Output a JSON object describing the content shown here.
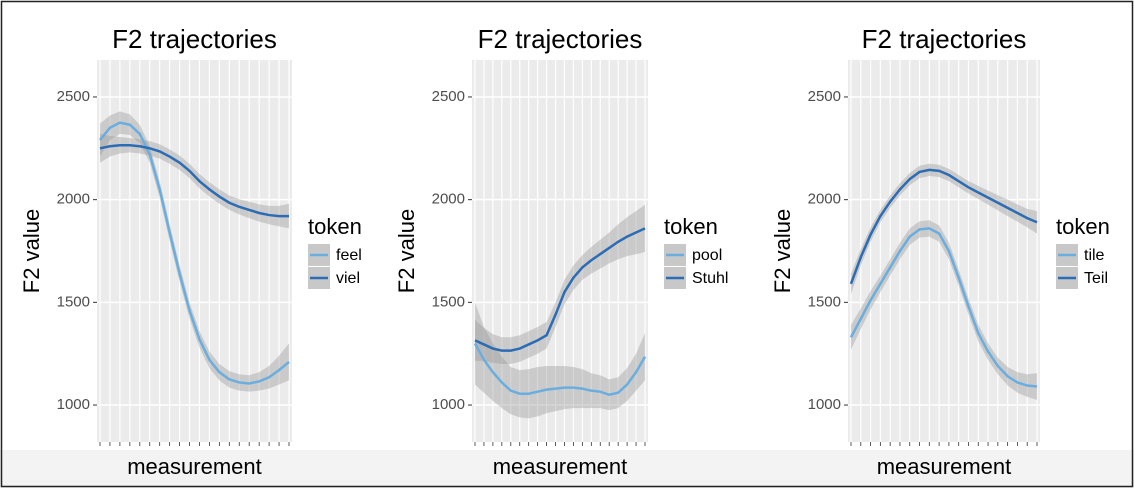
{
  "chart_data": [
    {
      "type": "line",
      "title": "F2 trajectories",
      "x_label": "measurement",
      "y_label": "F2 value",
      "legend_title": "token",
      "ylim": [
        820,
        2680
      ],
      "yticks": [
        1000,
        1500,
        2000,
        2500
      ],
      "grid": true,
      "series": [
        {
          "name": "feel",
          "color": "#6aaee0",
          "values": [
            2290,
            2350,
            2375,
            2365,
            2320,
            2220,
            2050,
            1840,
            1640,
            1460,
            1320,
            1220,
            1160,
            1125,
            1110,
            1105,
            1115,
            1135,
            1170,
            1210
          ],
          "lower": [
            2210,
            2290,
            2320,
            2315,
            2275,
            2180,
            2010,
            1800,
            1600,
            1420,
            1280,
            1180,
            1120,
            1085,
            1070,
            1065,
            1070,
            1080,
            1100,
            1120
          ],
          "upper": [
            2370,
            2410,
            2430,
            2415,
            2365,
            2260,
            2090,
            1880,
            1680,
            1500,
            1360,
            1260,
            1200,
            1165,
            1150,
            1145,
            1160,
            1190,
            1240,
            1300
          ]
        },
        {
          "name": "viel",
          "color": "#2b6cb5",
          "values": [
            2250,
            2260,
            2265,
            2265,
            2260,
            2250,
            2235,
            2210,
            2180,
            2140,
            2090,
            2050,
            2015,
            1985,
            1965,
            1950,
            1935,
            1925,
            1920,
            1920
          ],
          "lower": [
            2180,
            2210,
            2225,
            2230,
            2225,
            2215,
            2200,
            2175,
            2145,
            2105,
            2055,
            2015,
            1980,
            1950,
            1928,
            1910,
            1893,
            1880,
            1870,
            1860
          ],
          "upper": [
            2320,
            2310,
            2305,
            2300,
            2295,
            2285,
            2270,
            2245,
            2215,
            2175,
            2125,
            2085,
            2050,
            2020,
            2002,
            1990,
            1977,
            1970,
            1970,
            1980
          ]
        }
      ]
    },
    {
      "type": "line",
      "title": "F2 trajectories",
      "x_label": "measurement",
      "y_label": "F2 value",
      "legend_title": "token",
      "ylim": [
        820,
        2680
      ],
      "yticks": [
        1000,
        1500,
        2000,
        2500
      ],
      "grid": true,
      "series": [
        {
          "name": "pool",
          "color": "#6aaee0",
          "values": [
            1300,
            1220,
            1160,
            1110,
            1070,
            1055,
            1055,
            1065,
            1075,
            1080,
            1085,
            1085,
            1080,
            1070,
            1065,
            1050,
            1060,
            1100,
            1160,
            1235
          ],
          "lower": [
            1100,
            1060,
            1020,
            985,
            955,
            940,
            935,
            945,
            960,
            970,
            980,
            985,
            985,
            985,
            985,
            975,
            985,
            1020,
            1070,
            1120
          ],
          "upper": [
            1500,
            1380,
            1300,
            1235,
            1185,
            1170,
            1175,
            1185,
            1190,
            1190,
            1190,
            1185,
            1175,
            1155,
            1145,
            1125,
            1135,
            1180,
            1250,
            1350
          ]
        },
        {
          "name": "Stuhl",
          "color": "#2b6cb5",
          "values": [
            1315,
            1295,
            1275,
            1265,
            1265,
            1275,
            1295,
            1315,
            1340,
            1440,
            1550,
            1620,
            1670,
            1705,
            1735,
            1765,
            1795,
            1820,
            1840,
            1860
          ],
          "lower": [
            1215,
            1215,
            1205,
            1200,
            1200,
            1210,
            1230,
            1250,
            1275,
            1380,
            1490,
            1560,
            1610,
            1640,
            1665,
            1690,
            1710,
            1725,
            1735,
            1745
          ],
          "upper": [
            1415,
            1375,
            1345,
            1330,
            1330,
            1340,
            1360,
            1380,
            1405,
            1500,
            1610,
            1680,
            1730,
            1770,
            1805,
            1840,
            1880,
            1915,
            1945,
            1975
          ]
        }
      ]
    },
    {
      "type": "line",
      "title": "F2 trajectories",
      "x_label": "measurement",
      "y_label": "F2 value",
      "legend_title": "token",
      "ylim": [
        820,
        2680
      ],
      "yticks": [
        1000,
        1500,
        2000,
        2500
      ],
      "grid": true,
      "series": [
        {
          "name": "tile",
          "color": "#6aaee0",
          "values": [
            1330,
            1420,
            1510,
            1590,
            1670,
            1750,
            1820,
            1855,
            1860,
            1835,
            1750,
            1620,
            1480,
            1350,
            1260,
            1190,
            1140,
            1110,
            1095,
            1090
          ],
          "lower": [
            1270,
            1370,
            1465,
            1550,
            1630,
            1710,
            1780,
            1815,
            1820,
            1795,
            1710,
            1580,
            1440,
            1310,
            1220,
            1150,
            1095,
            1060,
            1040,
            1025
          ],
          "upper": [
            1390,
            1470,
            1555,
            1630,
            1710,
            1790,
            1860,
            1895,
            1900,
            1875,
            1790,
            1660,
            1520,
            1390,
            1300,
            1230,
            1185,
            1160,
            1150,
            1155
          ]
        },
        {
          "name": "Teil",
          "color": "#2b6cb5",
          "values": [
            1590,
            1720,
            1830,
            1920,
            1990,
            2050,
            2100,
            2135,
            2145,
            2140,
            2120,
            2090,
            2060,
            2035,
            2010,
            1985,
            1960,
            1935,
            1910,
            1890
          ],
          "lower": [
            1540,
            1680,
            1795,
            1890,
            1960,
            2020,
            2070,
            2105,
            2115,
            2110,
            2090,
            2060,
            2030,
            2003,
            1976,
            1948,
            1920,
            1893,
            1865,
            1835
          ],
          "upper": [
            1640,
            1760,
            1865,
            1950,
            2020,
            2080,
            2130,
            2165,
            2175,
            2170,
            2150,
            2120,
            2090,
            2067,
            2044,
            2022,
            2000,
            1977,
            1955,
            1945
          ]
        }
      ]
    }
  ]
}
